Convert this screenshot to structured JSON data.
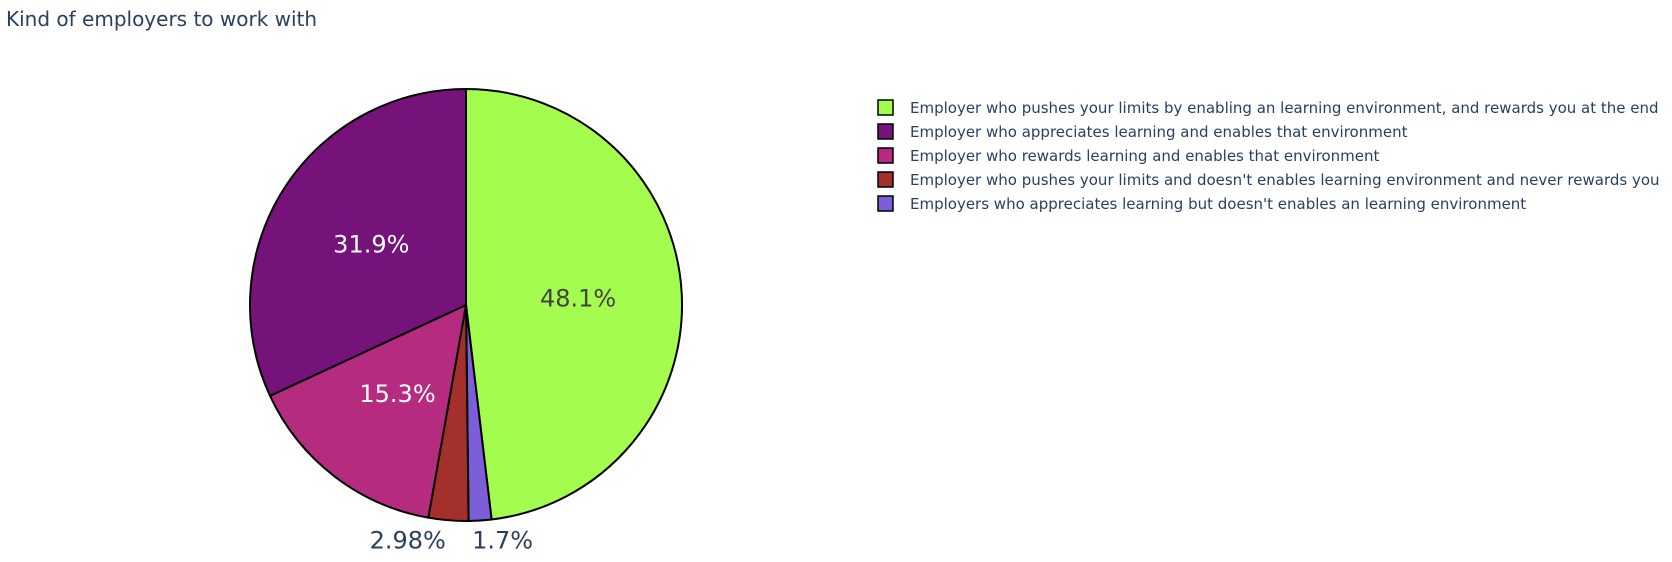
{
  "chart_data": {
    "type": "pie",
    "title": "Kind of employers to work with",
    "legend_position": "right",
    "slices": [
      {
        "label": "Employer who pushes your limits by enabling an learning environment, and rewards you at the end",
        "value": 48.1,
        "display": "48.1%",
        "color": "#a3fc4e"
      },
      {
        "label": "Employers who appreciates learning but doesn't enables an learning environment",
        "value": 1.7,
        "display": "1.7%",
        "color": "#7c5ed8"
      },
      {
        "label": "Employer who pushes your limits and doesn't enables learning environment and never rewards you",
        "value": 2.98,
        "display": "2.98%",
        "color": "#a3302c"
      },
      {
        "label": "Employer who rewards learning and enables that environment",
        "value": 15.3,
        "display": "15.3%",
        "color": "#b52b80"
      },
      {
        "label": "Employer who appreciates learning and enables that environment",
        "value": 31.9,
        "display": "31.9%",
        "color": "#76137a"
      }
    ],
    "legend_order": [
      0,
      4,
      3,
      2,
      1
    ]
  }
}
